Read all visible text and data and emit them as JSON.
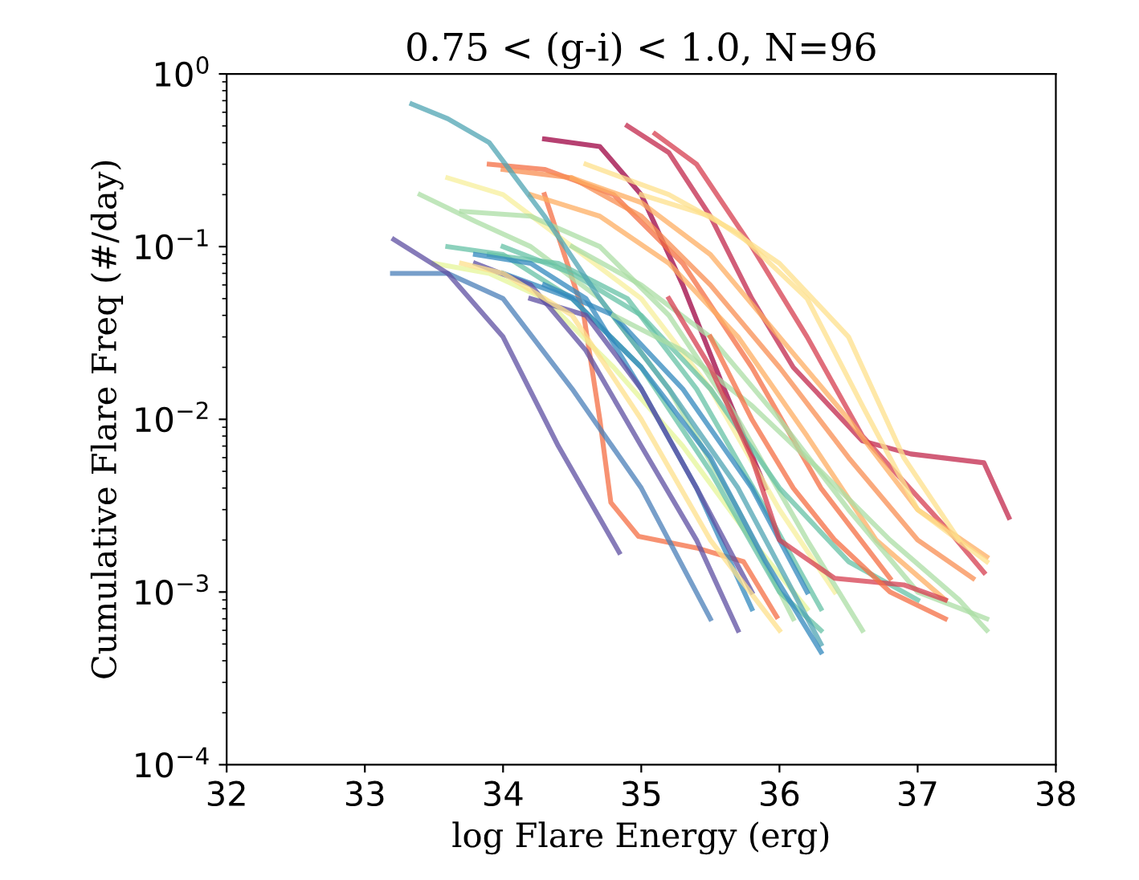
{
  "chart_data": {
    "type": "line",
    "title": "0.75 < (g-i) < 1.0, N=96",
    "xlabel": "log Flare Energy (erg)",
    "ylabel": "Cumulative Flare Freq (#/day)",
    "log": "y",
    "grid": false,
    "marker": "none",
    "line_style": "solid",
    "xlim": [
      32,
      38
    ],
    "xticks": [
      32,
      33,
      34,
      35,
      36,
      37,
      38
    ],
    "ylim": [
      0.0001,
      1
    ],
    "yticks": [
      {
        "value": 0.0001,
        "label": "10$^{−4}$"
      },
      {
        "value": 0.001,
        "label": "10$^{−3}$"
      },
      {
        "value": 0.01,
        "label": "10$^{−2}$"
      },
      {
        "value": 0.1,
        "label": "10$^{−1}$"
      },
      {
        "value": 1,
        "label": "10$^{0}$"
      }
    ],
    "series": [
      {
        "color": "#9e0142",
        "x": [
          34.3,
          34.7,
          35.0,
          35.3,
          35.6,
          35.9
        ],
        "values": [
          0.42,
          0.38,
          0.2,
          0.06,
          0.015,
          0.004
        ]
      },
      {
        "color": "#c2274b",
        "x": [
          34.9,
          35.2,
          35.5,
          35.8,
          36.1,
          36.6,
          36.95,
          37.48,
          37.66
        ],
        "values": [
          0.5,
          0.35,
          0.15,
          0.05,
          0.02,
          0.0075,
          0.0063,
          0.0056,
          0.0027
        ]
      },
      {
        "color": "#d53e4f",
        "x": [
          35.1,
          35.4,
          35.8,
          36.2,
          36.6,
          37.26,
          37.48
        ],
        "values": [
          0.45,
          0.3,
          0.1,
          0.03,
          0.008,
          0.0021,
          0.0013
        ]
      },
      {
        "color": "#f46d43",
        "x": [
          34.3,
          34.58,
          34.7,
          34.78,
          34.98,
          35.4,
          35.74,
          35.98
        ],
        "values": [
          0.2,
          0.042,
          0.01,
          0.0033,
          0.0021,
          0.0018,
          0.0015,
          0.00072
        ]
      },
      {
        "color": "#f46d43",
        "x": [
          33.9,
          34.3,
          34.8,
          35.3,
          35.8,
          36.3,
          36.8
        ],
        "values": [
          0.3,
          0.28,
          0.2,
          0.08,
          0.02,
          0.004,
          0.0012
        ]
      },
      {
        "color": "#f88d52",
        "x": [
          34.0,
          34.5,
          35.0,
          35.5,
          36.0,
          36.5,
          37.0,
          37.4
        ],
        "values": [
          0.28,
          0.25,
          0.15,
          0.06,
          0.02,
          0.006,
          0.002,
          0.0012
        ]
      },
      {
        "color": "#fdae61",
        "x": [
          34.5,
          35.0,
          35.5,
          36.0,
          36.5,
          37.0,
          37.5
        ],
        "values": [
          0.25,
          0.18,
          0.09,
          0.03,
          0.01,
          0.003,
          0.0016
        ]
      },
      {
        "color": "#fdae61",
        "x": [
          34.2,
          34.7,
          35.2,
          35.7,
          36.2,
          36.7,
          37.2
        ],
        "values": [
          0.2,
          0.15,
          0.08,
          0.03,
          0.008,
          0.002,
          0.0009
        ]
      },
      {
        "color": "#fee08b",
        "x": [
          34.6,
          35.2,
          35.7,
          36.2,
          36.6,
          37.0,
          37.5
        ],
        "values": [
          0.3,
          0.2,
          0.12,
          0.05,
          0.012,
          0.003,
          0.0015
        ]
      },
      {
        "color": "#fee08b",
        "x": [
          35.0,
          35.5,
          36.0,
          36.5,
          36.9,
          37.3
        ],
        "values": [
          0.2,
          0.15,
          0.08,
          0.03,
          0.006,
          0.002
        ]
      },
      {
        "color": "#f7ef9b",
        "x": [
          33.6,
          34.0,
          34.5,
          35.0,
          35.5,
          36.0,
          36.4
        ],
        "values": [
          0.25,
          0.2,
          0.1,
          0.05,
          0.015,
          0.003,
          0.001
        ]
      },
      {
        "color": "#e6f598",
        "x": [
          33.5,
          33.9,
          34.3,
          34.8,
          35.3,
          35.8,
          36.2
        ],
        "values": [
          0.08,
          0.07,
          0.05,
          0.02,
          0.007,
          0.002,
          0.0008
        ]
      },
      {
        "color": "#abdda4",
        "x": [
          33.4,
          33.8,
          34.2,
          34.7,
          35.2,
          35.7,
          36.1
        ],
        "values": [
          0.2,
          0.14,
          0.1,
          0.05,
          0.015,
          0.003,
          0.0007
        ]
      },
      {
        "color": "#abdda4",
        "x": [
          33.7,
          34.2,
          34.7,
          35.2,
          35.7,
          36.2,
          36.6
        ],
        "values": [
          0.16,
          0.15,
          0.1,
          0.04,
          0.01,
          0.002,
          0.0006
        ]
      },
      {
        "color": "#abdda4",
        "x": [
          34.5,
          35.0,
          35.5,
          36.0,
          36.5,
          37.0,
          37.5
        ],
        "values": [
          0.1,
          0.06,
          0.03,
          0.01,
          0.003,
          0.001,
          0.0007
        ]
      },
      {
        "color": "#66c2a5",
        "x": [
          33.6,
          34.0,
          34.5,
          35.0,
          35.5,
          36.0,
          36.3
        ],
        "values": [
          0.1,
          0.09,
          0.05,
          0.02,
          0.005,
          0.001,
          0.0006
        ]
      },
      {
        "color": "#66c2a5",
        "x": [
          34.0,
          34.5,
          35.0,
          35.5,
          36.0,
          36.5,
          37.0
        ],
        "values": [
          0.1,
          0.07,
          0.04,
          0.015,
          0.004,
          0.0015,
          0.0009
        ]
      },
      {
        "color": "#66c2a5",
        "x": [
          33.9,
          34.4,
          34.9,
          35.4,
          35.9,
          36.3
        ],
        "values": [
          0.09,
          0.08,
          0.05,
          0.015,
          0.003,
          0.0008
        ]
      },
      {
        "color": "#4fa4b3",
        "x": [
          33.34,
          33.6,
          33.9,
          34.3,
          34.7,
          35.2,
          35.7,
          36.3
        ],
        "values": [
          0.67,
          0.55,
          0.4,
          0.15,
          0.05,
          0.015,
          0.004,
          0.0005
        ]
      },
      {
        "color": "#3288bd",
        "x": [
          33.8,
          34.2,
          34.6,
          35.0,
          35.4,
          35.8
        ],
        "values": [
          0.09,
          0.08,
          0.05,
          0.015,
          0.004,
          0.0008
        ]
      },
      {
        "color": "#3288bd",
        "x": [
          34.0,
          34.5,
          35.0,
          35.5,
          35.9,
          36.3
        ],
        "values": [
          0.07,
          0.05,
          0.02,
          0.006,
          0.0015,
          0.00045
        ]
      },
      {
        "color": "#4a7fb8",
        "x": [
          33.2,
          33.6,
          34.0,
          34.5,
          35.0,
          35.5
        ],
        "values": [
          0.07,
          0.07,
          0.05,
          0.015,
          0.004,
          0.0007
        ]
      },
      {
        "color": "#5e4fa2",
        "x": [
          33.21,
          33.6,
          34.0,
          34.4,
          34.84
        ],
        "values": [
          0.11,
          0.07,
          0.03,
          0.007,
          0.0017
        ]
      },
      {
        "color": "#5e4fa2",
        "x": [
          33.8,
          34.2,
          34.6,
          35.0,
          35.4,
          35.7
        ],
        "values": [
          0.08,
          0.06,
          0.025,
          0.007,
          0.002,
          0.0006
        ]
      },
      {
        "color": "#5e4fa2",
        "x": [
          34.2,
          34.6,
          35.0,
          35.4,
          35.8
        ],
        "values": [
          0.05,
          0.04,
          0.015,
          0.004,
          0.001
        ]
      },
      {
        "color": "#3288bd",
        "x": [
          34.3,
          34.8,
          35.3,
          35.8,
          36.2
        ],
        "values": [
          0.06,
          0.04,
          0.015,
          0.004,
          0.001
        ]
      },
      {
        "color": "#abdda4",
        "x": [
          34.8,
          35.3,
          35.8,
          36.3,
          36.8,
          37.3,
          37.5
        ],
        "values": [
          0.04,
          0.025,
          0.012,
          0.005,
          0.002,
          0.0009,
          0.0006
        ]
      },
      {
        "color": "#d53e4f",
        "x": [
          35.2,
          35.5,
          35.8,
          36.0,
          36.4,
          36.9,
          37.2
        ],
        "values": [
          0.05,
          0.02,
          0.006,
          0.002,
          0.0012,
          0.0011,
          0.0009
        ]
      },
      {
        "color": "#f46d43",
        "x": [
          35.5,
          35.8,
          36.1,
          36.4,
          36.8,
          37.2
        ],
        "values": [
          0.03,
          0.01,
          0.004,
          0.002,
          0.001,
          0.0007
        ]
      },
      {
        "color": "#fee08b",
        "x": [
          33.7,
          34.0,
          34.5,
          35.0,
          35.5,
          36.0
        ],
        "values": [
          0.08,
          0.07,
          0.04,
          0.01,
          0.002,
          0.0006
        ]
      }
    ]
  }
}
